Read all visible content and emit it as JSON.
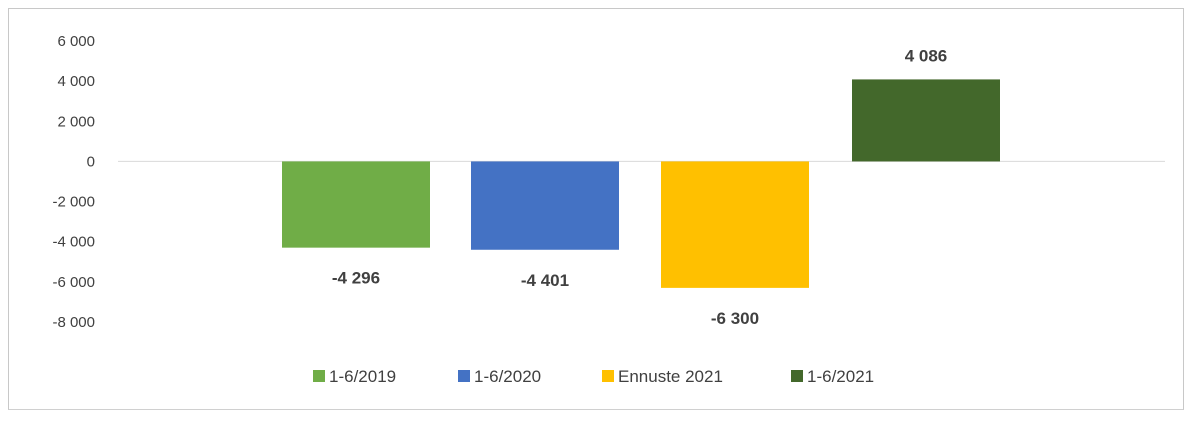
{
  "chart_data": {
    "type": "bar",
    "series": [
      {
        "name": "1-6/2019",
        "value": -4296,
        "label": "-4 296",
        "color": "#70ad47"
      },
      {
        "name": "1-6/2020",
        "value": -4401,
        "label": "-4 401",
        "color": "#4472c4"
      },
      {
        "name": "Ennuste 2021",
        "value": -6300,
        "label": "-6 300",
        "color": "#ffc000"
      },
      {
        "name": "1-6/2021",
        "value": 4086,
        "label": "4 086",
        "color": "#43682b"
      }
    ],
    "yticks": [
      6000,
      4000,
      2000,
      0,
      -2000,
      -4000,
      -6000,
      -8000
    ],
    "ytick_labels": [
      "6 000",
      "4 000",
      "2 000",
      "0",
      "-2 000",
      "-4 000",
      "-6 000",
      "-8 000"
    ],
    "ylim": [
      -8000,
      6000
    ],
    "grid": false,
    "legend_position": "bottom",
    "axis_color": "#d9d9d9",
    "label_color": "#404040"
  }
}
